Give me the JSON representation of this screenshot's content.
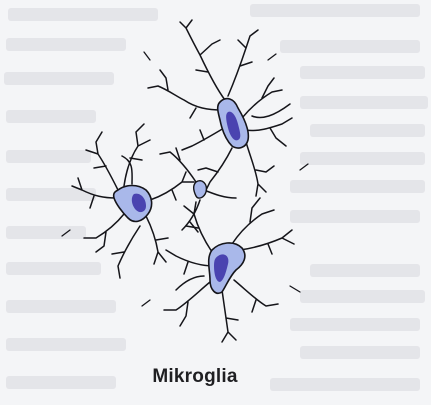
{
  "figure": {
    "caption": "Mikroglia",
    "colors": {
      "page": "#f4f5f7",
      "process": "#15151a",
      "cell_body": "#a9b8ea",
      "nucleus": "#4a43b0",
      "bleed_text": "#b9bcc6"
    },
    "cell_count": 4
  }
}
